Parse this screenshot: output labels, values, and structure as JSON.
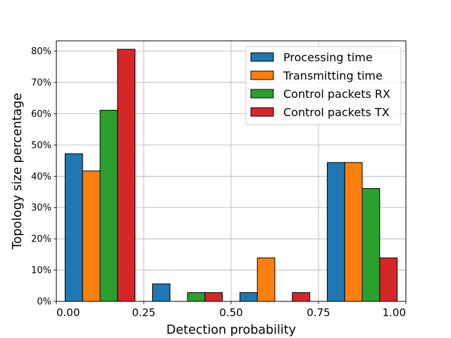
{
  "chart_data": {
    "type": "bar",
    "title": "",
    "xlabel": "Detection probability",
    "ylabel": "Topology size percentage",
    "xlim": [
      0.0,
      1.0
    ],
    "ylim": [
      0,
      83.3
    ],
    "grid": true,
    "legend_position": "top-right",
    "x_ticks": [
      {
        "value": 0.0,
        "label": "0.00"
      },
      {
        "value": 0.25,
        "label": "0.25"
      },
      {
        "value": 0.5,
        "label": "0.50"
      },
      {
        "value": 0.75,
        "label": "0.75"
      },
      {
        "value": 1.0,
        "label": "1.00"
      }
    ],
    "y_ticks": [
      {
        "value": 0,
        "label": "0%"
      },
      {
        "value": 10,
        "label": "10%"
      },
      {
        "value": 20,
        "label": "20%"
      },
      {
        "value": 30,
        "label": "30%"
      },
      {
        "value": 40,
        "label": "40%"
      },
      {
        "value": 50,
        "label": "50%"
      },
      {
        "value": 60,
        "label": "60%"
      },
      {
        "value": 70,
        "label": "70%"
      },
      {
        "value": 80,
        "label": "80%"
      }
    ],
    "bins": [
      {
        "start": 0.0,
        "end": 0.25
      },
      {
        "start": 0.25,
        "end": 0.5
      },
      {
        "start": 0.5,
        "end": 0.75
      },
      {
        "start": 0.75,
        "end": 1.0
      }
    ],
    "series": [
      {
        "name": "Processing time",
        "color": "#1f77b4",
        "values": [
          47.2,
          5.6,
          2.8,
          44.4
        ]
      },
      {
        "name": "Transmitting time",
        "color": "#ff7f0e",
        "values": [
          41.7,
          0,
          13.9,
          44.4
        ]
      },
      {
        "name": "Control packets RX",
        "color": "#2ca02c",
        "values": [
          61.1,
          2.8,
          0,
          36.1
        ]
      },
      {
        "name": "Control packets TX",
        "color": "#d62728",
        "values": [
          80.6,
          2.8,
          2.8,
          13.9
        ]
      }
    ]
  }
}
